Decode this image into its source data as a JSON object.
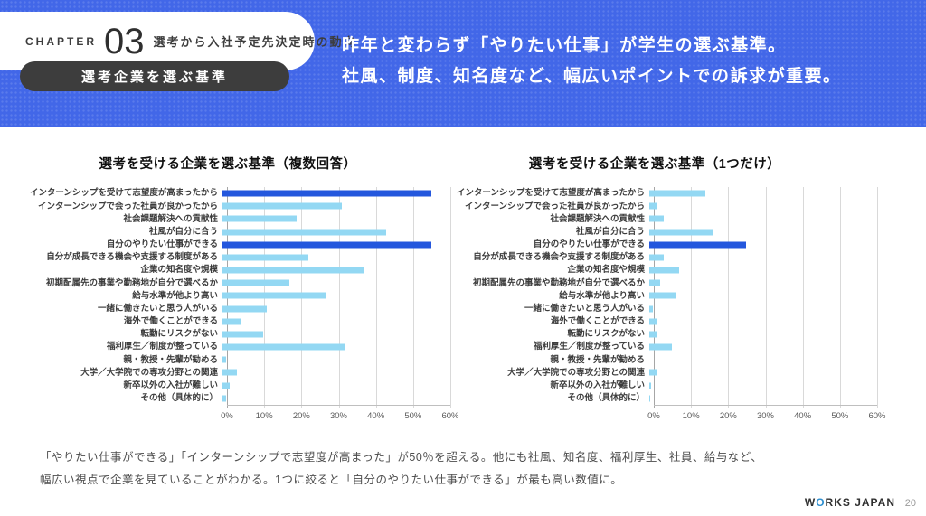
{
  "header": {
    "chapter_label": "CHAPTER",
    "chapter_number": "03",
    "chapter_subtitle": "選考から入社予定先決定時の動向",
    "section_pill": "選考企業を選ぶ基準",
    "headline_line1": "昨年と変わらず「やりたい仕事」が学生の選ぶ基準。",
    "headline_line2": "社風、制度、知名度など、幅広いポイントでの訴求が重要。",
    "background_color": "#4267e8"
  },
  "chart_data": [
    {
      "type": "bar",
      "orientation": "horizontal",
      "title": "選考を受ける企業を選ぶ基準（複数回答）",
      "categories": [
        "インターンシップを受けて志望度が高まったから",
        "インターンシップで会った社員が良かったから",
        "社会課題解決への貢献性",
        "社風が自分に合う",
        "自分のやりたい仕事ができる",
        "自分が成長できる機会や支援する制度がある",
        "企業の知名度や規模",
        "初期配属先の事業や勤務地が自分で選べるか",
        "給与水準が他より高い",
        "一緒に働きたいと思う人がいる",
        "海外で働くことができる",
        "転勤にリスクがない",
        "福利厚生／制度が整っている",
        "親・教授・先輩が勧める",
        "大学／大学院での専攻分野との関連",
        "新卒以外の入社が難しい",
        "その他（具体的に）"
      ],
      "values": [
        56,
        32,
        20,
        44,
        56,
        23,
        38,
        18,
        28,
        12,
        5,
        11,
        33,
        1,
        4,
        2,
        1
      ],
      "highlight_indices": [
        0,
        4
      ],
      "xlim": [
        0,
        60
      ],
      "x_ticks": [
        "0%",
        "10%",
        "20%",
        "30%",
        "40%",
        "50%",
        "60%"
      ],
      "bar_color": "#93d8f3",
      "highlight_color": "#2457dd",
      "grid": true,
      "legend": false
    },
    {
      "type": "bar",
      "orientation": "horizontal",
      "title": "選考を受ける企業を選ぶ基準（1つだけ）",
      "categories": [
        "インターンシップを受けて志望度が高まったから",
        "インターンシップで会った社員が良かったから",
        "社会課題解決への貢献性",
        "社風が自分に合う",
        "自分のやりたい仕事ができる",
        "自分が成長できる機会や支援する制度がある",
        "企業の知名度や規模",
        "初期配属先の事業や勤務地が自分で選べるか",
        "給与水準が他より高い",
        "一緒に働きたいと思う人がいる",
        "海外で働くことができる",
        "転勤にリスクがない",
        "福利厚生／制度が整っている",
        "親・教授・先輩が勧める",
        "大学／大学院での専攻分野との関連",
        "新卒以外の入社が難しい",
        "その他（具体的に）"
      ],
      "values": [
        15,
        2,
        4,
        17,
        26,
        4,
        8,
        3,
        7,
        1,
        2,
        2,
        6,
        0,
        2,
        0.5,
        0.3
      ],
      "highlight_indices": [
        4
      ],
      "xlim": [
        0,
        60
      ],
      "x_ticks": [
        "0%",
        "10%",
        "20%",
        "30%",
        "40%",
        "50%",
        "60%"
      ],
      "bar_color": "#93d8f3",
      "highlight_color": "#2457dd",
      "grid": true,
      "legend": false
    }
  ],
  "note": {
    "line1": "「やりたい仕事ができる」「インターンシップで志望度が高まった」が50％を超える。他にも社風、知名度、福利厚生、社員、給与など、",
    "line2": "幅広い視点で企業を見ていることがわかる。1つに絞ると「自分のやりたい仕事ができる」が最も高い数値に。"
  },
  "footer": {
    "brand_prefix": "W",
    "brand_o": "O",
    "brand_suffix": "RKS JAPAN",
    "page_number": "20"
  }
}
